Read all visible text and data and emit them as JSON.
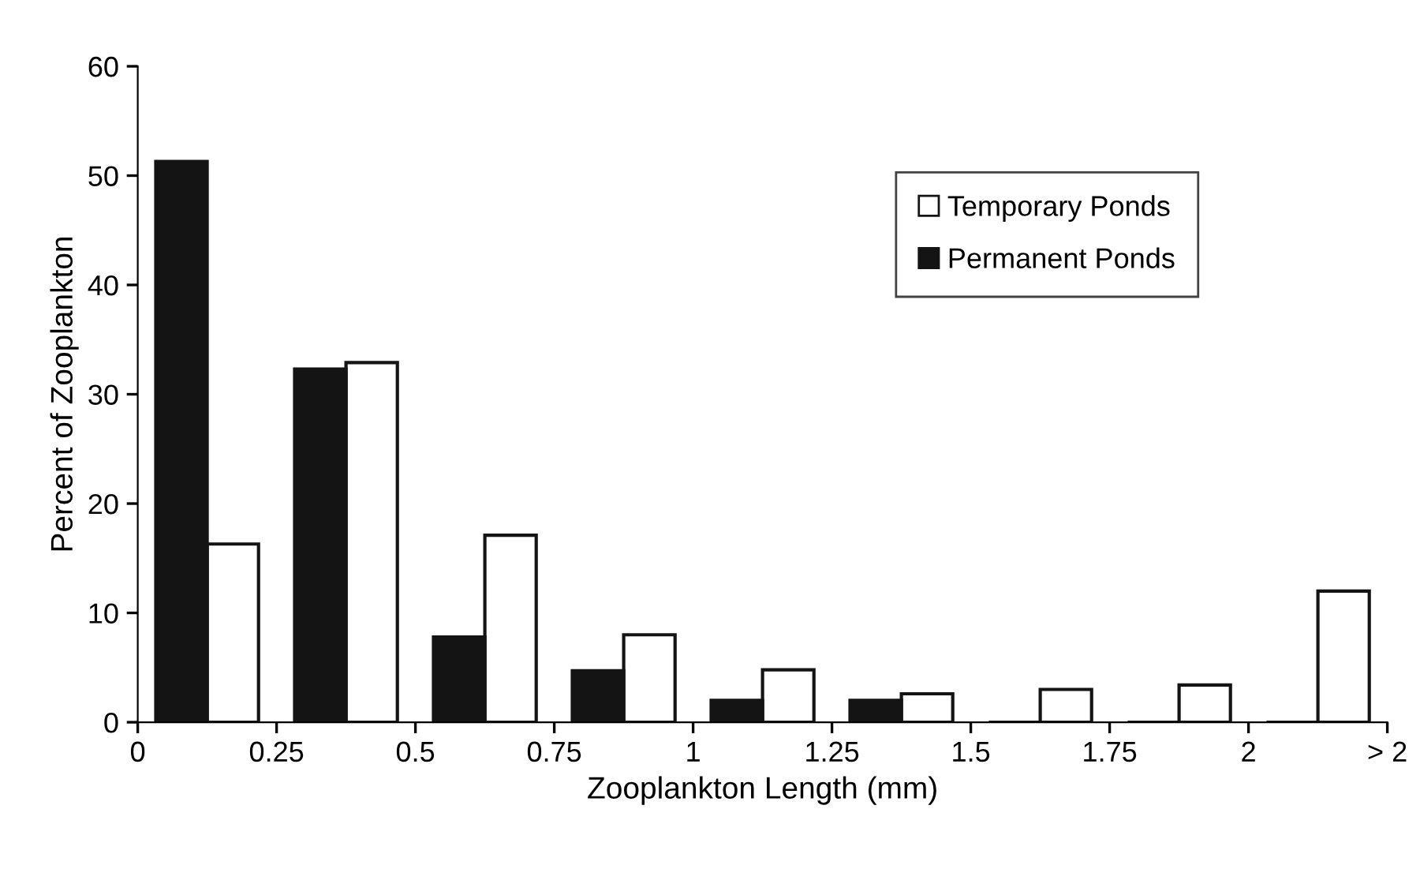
{
  "chart_data": {
    "type": "bar",
    "xlabel": "Zooplankton Length (mm)",
    "ylabel": "Percent of Zooplankton",
    "x": [
      0.125,
      0.375,
      0.625,
      0.875,
      1.125,
      1.375,
      1.625,
      1.875,
      2.125
    ],
    "series": [
      {
        "name": "Temporary Ponds",
        "color": "#ffffff",
        "values": [
          16.3,
          32.9,
          17.1,
          8.0,
          4.8,
          2.6,
          3.0,
          3.4,
          12.0
        ]
      },
      {
        "name": "Permanent Ponds",
        "color": "#141414",
        "values": [
          51.3,
          32.3,
          7.8,
          4.7,
          2.0,
          2.0,
          0,
          0,
          0
        ]
      }
    ],
    "xlim": [
      0,
      2.25
    ],
    "xticks": [
      0,
      0.25,
      0.5,
      0.75,
      1,
      1.25,
      1.5,
      1.75,
      2,
      {
        "value": 2.25,
        "label": "> 2"
      }
    ],
    "ylim": [
      0,
      60
    ],
    "yticks": [
      0,
      10,
      20,
      30,
      40,
      50,
      60
    ],
    "grid": false,
    "legend": "top right"
  }
}
